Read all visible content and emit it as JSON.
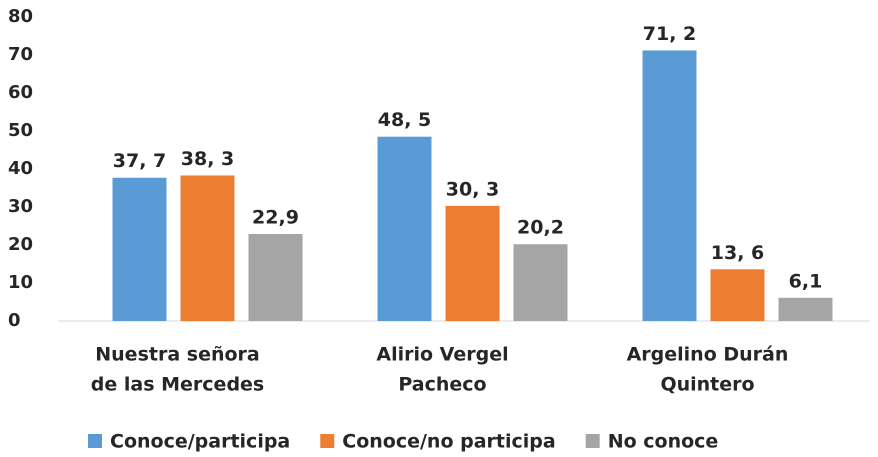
{
  "chart_data": {
    "type": "bar",
    "categories": [
      [
        "Nuestra señora",
        "de las Mercedes"
      ],
      [
        "Alirio Vergel",
        "Pacheco"
      ],
      [
        "Argelino Durán",
        "Quintero"
      ]
    ],
    "series": [
      {
        "name": "Conoce/participa",
        "color": "#5b9bd5",
        "values": [
          37.7,
          48.5,
          71.2
        ],
        "value_labels": [
          "37, 7",
          "48, 5",
          "71, 2"
        ]
      },
      {
        "name": "Conoce/no participa",
        "color": "#ed7d31",
        "values": [
          38.3,
          30.3,
          13.6
        ],
        "value_labels": [
          "38, 3",
          "30, 3",
          "13, 6"
        ]
      },
      {
        "name": "No conoce",
        "color": "#a5a5a5",
        "values": [
          22.9,
          20.2,
          6.1
        ],
        "value_labels": [
          "22,9",
          "20,2",
          "6,1"
        ]
      }
    ],
    "ylim": [
      0,
      80
    ],
    "yticks": [
      0,
      10,
      20,
      30,
      40,
      50,
      60,
      70,
      80
    ],
    "grid": false,
    "legend": "bottom"
  }
}
